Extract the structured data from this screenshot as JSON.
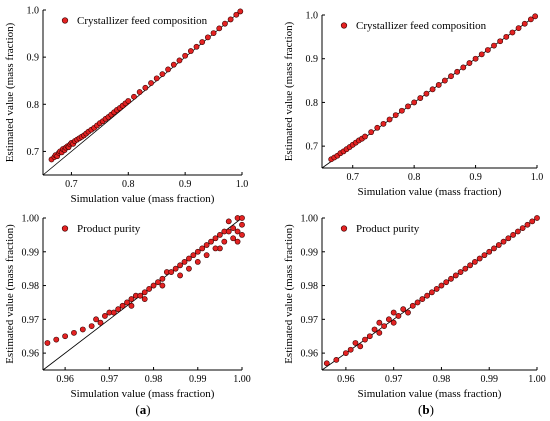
{
  "figure": {
    "panel_labels": [
      {
        "open": "(",
        "letter": "a",
        "close": ")"
      },
      {
        "open": "(",
        "letter": "b",
        "close": ")"
      }
    ]
  },
  "colors": {
    "marker_fill": "#e32222",
    "marker_edge": "#3a0000",
    "axis": "#000000",
    "diagonal": "#000000"
  },
  "chart_data": [
    {
      "id": "top-left",
      "type": "scatter",
      "panel": "a",
      "legend": "Crystallizer feed composition",
      "legend_position": "top-left",
      "xlabel": "Simulation value (mass fraction)",
      "ylabel": "Estimated value (mass fraction)",
      "xlim": [
        0.65,
        1.0
      ],
      "ylim": [
        0.65,
        1.0
      ],
      "xticks": [
        "0.7",
        "0.8",
        "0.9",
        "1.0"
      ],
      "xtick_values": [
        0.7,
        0.8,
        0.9,
        1.0
      ],
      "yticks": [
        "0.7",
        "0.8",
        "0.9",
        "1.0"
      ],
      "ytick_values": [
        0.7,
        0.8,
        0.9,
        1.0
      ],
      "diagonal": true,
      "grid": false,
      "points": [
        [
          0.665,
          0.683
        ],
        [
          0.67,
          0.688
        ],
        [
          0.672,
          0.692
        ],
        [
          0.675,
          0.69
        ],
        [
          0.678,
          0.697
        ],
        [
          0.68,
          0.7
        ],
        [
          0.683,
          0.698
        ],
        [
          0.685,
          0.705
        ],
        [
          0.688,
          0.703
        ],
        [
          0.69,
          0.708
        ],
        [
          0.693,
          0.711
        ],
        [
          0.695,
          0.709
        ],
        [
          0.698,
          0.715
        ],
        [
          0.7,
          0.718
        ],
        [
          0.703,
          0.716
        ],
        [
          0.706,
          0.722
        ],
        [
          0.71,
          0.725
        ],
        [
          0.714,
          0.728
        ],
        [
          0.718,
          0.731
        ],
        [
          0.722,
          0.734
        ],
        [
          0.726,
          0.738
        ],
        [
          0.73,
          0.742
        ],
        [
          0.735,
          0.746
        ],
        [
          0.74,
          0.75
        ],
        [
          0.745,
          0.755
        ],
        [
          0.75,
          0.76
        ],
        [
          0.755,
          0.764
        ],
        [
          0.76,
          0.769
        ],
        [
          0.765,
          0.773
        ],
        [
          0.77,
          0.778
        ],
        [
          0.775,
          0.783
        ],
        [
          0.78,
          0.788
        ],
        [
          0.785,
          0.792
        ],
        [
          0.79,
          0.797
        ],
        [
          0.795,
          0.802
        ],
        [
          0.8,
          0.807
        ],
        [
          0.81,
          0.816
        ],
        [
          0.82,
          0.826
        ],
        [
          0.83,
          0.835
        ],
        [
          0.84,
          0.845
        ],
        [
          0.85,
          0.855
        ],
        [
          0.86,
          0.864
        ],
        [
          0.87,
          0.874
        ],
        [
          0.88,
          0.884
        ],
        [
          0.89,
          0.893
        ],
        [
          0.9,
          0.903
        ],
        [
          0.91,
          0.913
        ],
        [
          0.92,
          0.922
        ],
        [
          0.93,
          0.932
        ],
        [
          0.94,
          0.942
        ],
        [
          0.95,
          0.951
        ],
        [
          0.96,
          0.961
        ],
        [
          0.97,
          0.971
        ],
        [
          0.98,
          0.98
        ],
        [
          0.99,
          0.99
        ],
        [
          0.997,
          0.997
        ]
      ]
    },
    {
      "id": "top-right",
      "type": "scatter",
      "panel": "b",
      "legend": "Crystallizer feed composition",
      "legend_position": "top-left",
      "xlabel": "Simulation value (mass fraction)",
      "ylabel": "Estimated value (mass fraction)",
      "xlim": [
        0.65,
        1.0
      ],
      "ylim": [
        0.65,
        1.0
      ],
      "xticks": [
        "0.7",
        "0.8",
        "0.9",
        "1.0"
      ],
      "xtick_values": [
        0.7,
        0.8,
        0.9,
        1.0
      ],
      "yticks": [
        "0.7",
        "0.8",
        "0.9",
        "1.0"
      ],
      "ytick_values": [
        0.7,
        0.8,
        0.9,
        1.0
      ],
      "diagonal": true,
      "grid": false,
      "points": [
        [
          0.665,
          0.67
        ],
        [
          0.67,
          0.674
        ],
        [
          0.675,
          0.678
        ],
        [
          0.68,
          0.684
        ],
        [
          0.685,
          0.688
        ],
        [
          0.69,
          0.693
        ],
        [
          0.695,
          0.698
        ],
        [
          0.7,
          0.703
        ],
        [
          0.705,
          0.708
        ],
        [
          0.71,
          0.713
        ],
        [
          0.715,
          0.717
        ],
        [
          0.72,
          0.722
        ],
        [
          0.73,
          0.732
        ],
        [
          0.74,
          0.742
        ],
        [
          0.75,
          0.751
        ],
        [
          0.76,
          0.761
        ],
        [
          0.77,
          0.771
        ],
        [
          0.78,
          0.781
        ],
        [
          0.79,
          0.791
        ],
        [
          0.8,
          0.8
        ],
        [
          0.81,
          0.81
        ],
        [
          0.82,
          0.82
        ],
        [
          0.83,
          0.83
        ],
        [
          0.84,
          0.84
        ],
        [
          0.85,
          0.85
        ],
        [
          0.86,
          0.86
        ],
        [
          0.87,
          0.87
        ],
        [
          0.88,
          0.88
        ],
        [
          0.89,
          0.89
        ],
        [
          0.9,
          0.9
        ],
        [
          0.91,
          0.91
        ],
        [
          0.92,
          0.92
        ],
        [
          0.93,
          0.93
        ],
        [
          0.94,
          0.94
        ],
        [
          0.95,
          0.95
        ],
        [
          0.96,
          0.96
        ],
        [
          0.97,
          0.97
        ],
        [
          0.98,
          0.98
        ],
        [
          0.99,
          0.99
        ],
        [
          0.997,
          0.997
        ]
      ]
    },
    {
      "id": "bottom-left",
      "type": "scatter",
      "panel": "a",
      "legend": "Product purity",
      "legend_position": "top-left",
      "xlabel": "Simulation value (mass fraction)",
      "ylabel": "Estimated value (mass fraction)",
      "xlim": [
        0.955,
        1.0
      ],
      "ylim": [
        0.955,
        1.0
      ],
      "xticks": [
        "0.96",
        "0.97",
        "0.98",
        "0.99",
        "1.00"
      ],
      "xtick_values": [
        0.96,
        0.97,
        0.98,
        0.99,
        1.0
      ],
      "yticks": [
        "0.96",
        "0.97",
        "0.98",
        "0.99",
        "1.00"
      ],
      "ytick_values": [
        0.96,
        0.97,
        0.98,
        0.99,
        1.0
      ],
      "diagonal": true,
      "grid": false,
      "points": [
        [
          0.956,
          0.963
        ],
        [
          0.958,
          0.964
        ],
        [
          0.96,
          0.965
        ],
        [
          0.962,
          0.966
        ],
        [
          0.964,
          0.967
        ],
        [
          0.966,
          0.968
        ],
        [
          0.967,
          0.97
        ],
        [
          0.968,
          0.969
        ],
        [
          0.969,
          0.971
        ],
        [
          0.97,
          0.972
        ],
        [
          0.971,
          0.972
        ],
        [
          0.972,
          0.973
        ],
        [
          0.973,
          0.974
        ],
        [
          0.974,
          0.975
        ],
        [
          0.975,
          0.976
        ],
        [
          0.976,
          0.977
        ],
        [
          0.977,
          0.977
        ],
        [
          0.978,
          0.978
        ],
        [
          0.979,
          0.979
        ],
        [
          0.98,
          0.98
        ],
        [
          0.981,
          0.981
        ],
        [
          0.982,
          0.982
        ],
        [
          0.983,
          0.984
        ],
        [
          0.984,
          0.984
        ],
        [
          0.985,
          0.985
        ],
        [
          0.986,
          0.986
        ],
        [
          0.987,
          0.987
        ],
        [
          0.988,
          0.988
        ],
        [
          0.989,
          0.989
        ],
        [
          0.99,
          0.99
        ],
        [
          0.991,
          0.991
        ],
        [
          0.992,
          0.992
        ],
        [
          0.993,
          0.993
        ],
        [
          0.994,
          0.994
        ],
        [
          0.995,
          0.995
        ],
        [
          0.996,
          0.996
        ],
        [
          0.997,
          0.996
        ],
        [
          0.998,
          0.997
        ],
        [
          0.999,
          0.996
        ],
        [
          1.0,
          0.998
        ],
        [
          0.995,
          0.991
        ],
        [
          0.996,
          0.993
        ],
        [
          0.998,
          0.994
        ],
        [
          0.999,
          0.993
        ],
        [
          1.0,
          0.995
        ],
        [
          0.997,
          0.999
        ],
        [
          0.999,
          1.0
        ],
        [
          1.0,
          1.0
        ],
        [
          0.99,
          0.987
        ],
        [
          0.992,
          0.989
        ],
        [
          0.994,
          0.991
        ],
        [
          0.986,
          0.983
        ],
        [
          0.988,
          0.985
        ],
        [
          0.982,
          0.98
        ],
        [
          0.978,
          0.976
        ],
        [
          0.975,
          0.974
        ]
      ]
    },
    {
      "id": "bottom-right",
      "type": "scatter",
      "panel": "b",
      "legend": "Product purity",
      "legend_position": "top-left",
      "xlabel": "Simulation value (mass fraction)",
      "ylabel": "Estimated value (mass fraction)",
      "xlim": [
        0.955,
        1.0
      ],
      "ylim": [
        0.955,
        1.0
      ],
      "xticks": [
        "0.96",
        "0.97",
        "0.98",
        "0.99",
        "1.00"
      ],
      "xtick_values": [
        0.96,
        0.97,
        0.98,
        0.99,
        1.0
      ],
      "yticks": [
        "0.96",
        "0.97",
        "0.98",
        "0.99",
        "1.00"
      ],
      "ytick_values": [
        0.96,
        0.97,
        0.98,
        0.99,
        1.0
      ],
      "diagonal": true,
      "grid": false,
      "points": [
        [
          0.956,
          0.957
        ],
        [
          0.958,
          0.958
        ],
        [
          0.96,
          0.96
        ],
        [
          0.961,
          0.961
        ],
        [
          0.962,
          0.963
        ],
        [
          0.963,
          0.962
        ],
        [
          0.964,
          0.964
        ],
        [
          0.965,
          0.965
        ],
        [
          0.966,
          0.967
        ],
        [
          0.967,
          0.966
        ],
        [
          0.967,
          0.969
        ],
        [
          0.968,
          0.968
        ],
        [
          0.969,
          0.97
        ],
        [
          0.97,
          0.969
        ],
        [
          0.97,
          0.972
        ],
        [
          0.971,
          0.971
        ],
        [
          0.972,
          0.973
        ],
        [
          0.973,
          0.972
        ],
        [
          0.974,
          0.974
        ],
        [
          0.975,
          0.975
        ],
        [
          0.976,
          0.976
        ],
        [
          0.977,
          0.977
        ],
        [
          0.978,
          0.978
        ],
        [
          0.979,
          0.979
        ],
        [
          0.98,
          0.98
        ],
        [
          0.981,
          0.981
        ],
        [
          0.982,
          0.982
        ],
        [
          0.983,
          0.983
        ],
        [
          0.984,
          0.984
        ],
        [
          0.985,
          0.985
        ],
        [
          0.986,
          0.986
        ],
        [
          0.987,
          0.987
        ],
        [
          0.988,
          0.988
        ],
        [
          0.989,
          0.989
        ],
        [
          0.99,
          0.99
        ],
        [
          0.991,
          0.991
        ],
        [
          0.992,
          0.992
        ],
        [
          0.993,
          0.993
        ],
        [
          0.994,
          0.994
        ],
        [
          0.995,
          0.995
        ],
        [
          0.996,
          0.996
        ],
        [
          0.997,
          0.997
        ],
        [
          0.998,
          0.998
        ],
        [
          0.999,
          0.999
        ],
        [
          1.0,
          1.0
        ]
      ]
    }
  ]
}
